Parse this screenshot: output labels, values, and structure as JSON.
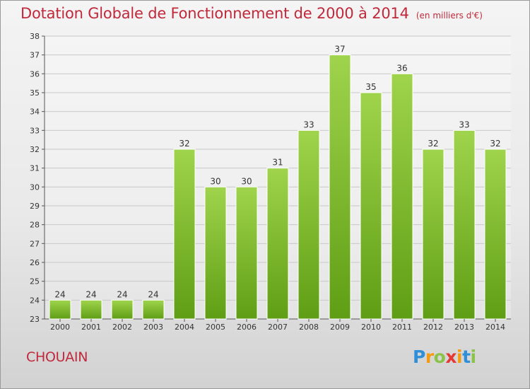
{
  "title": "Dotation Globale de Fonctionnement de 2000 à 2014",
  "unit": "(en milliers d'€)",
  "commune": "CHOUAIN",
  "logo": {
    "letters": [
      "P",
      "r",
      "o",
      "x",
      "i",
      "t",
      "i"
    ],
    "colors": [
      "#2f8fd8",
      "#f39c12",
      "#8bc34a",
      "#e53935",
      "#f39c12",
      "#2f8fd8",
      "#8bc34a"
    ]
  },
  "colors": {
    "bar_top": "#9fd44c",
    "bar_bottom": "#5f9e14",
    "title": "#c0293b"
  },
  "chart_data": {
    "type": "bar",
    "title": "Dotation Globale de Fonctionnement de 2000 à 2014",
    "categories": [
      "2000",
      "2001",
      "2002",
      "2003",
      "2004",
      "2005",
      "2006",
      "2007",
      "2008",
      "2009",
      "2010",
      "2011",
      "2012",
      "2013",
      "2014"
    ],
    "values": [
      24,
      24,
      24,
      24,
      32,
      30,
      30,
      31,
      33,
      37,
      35,
      36,
      32,
      33,
      32
    ],
    "xlabel": "",
    "ylabel": "",
    "ylim": [
      23,
      38
    ],
    "yticks": [
      23,
      24,
      25,
      26,
      27,
      28,
      29,
      30,
      31,
      32,
      33,
      34,
      35,
      36,
      37,
      38
    ],
    "grid": true,
    "data_labels": true
  }
}
